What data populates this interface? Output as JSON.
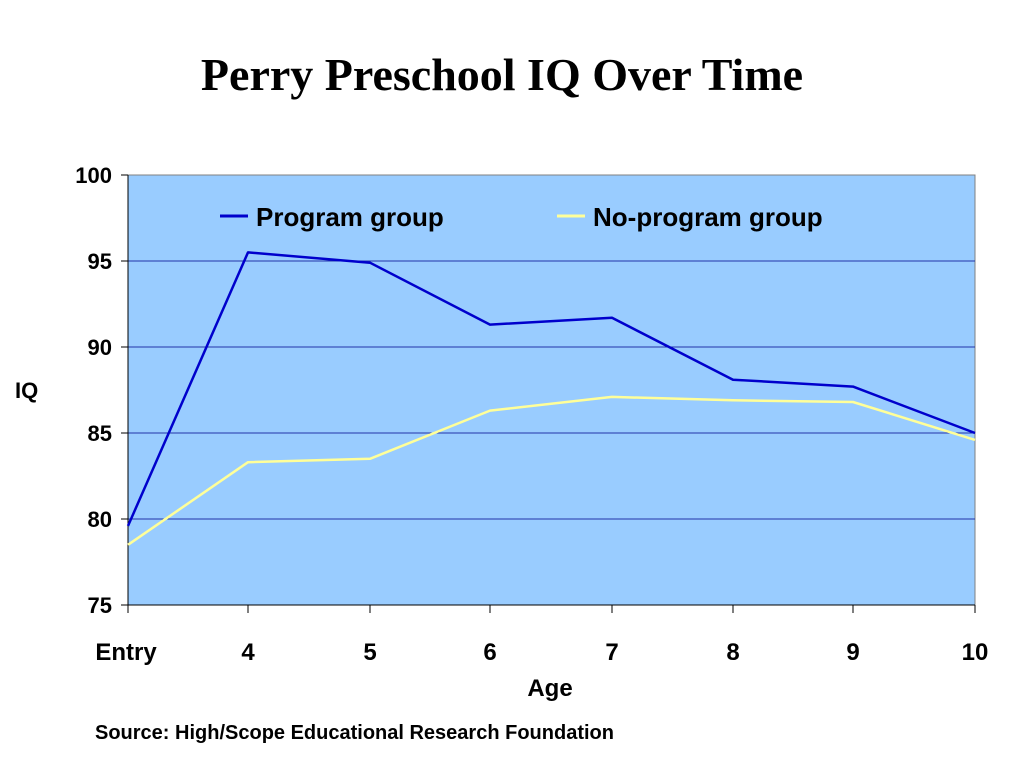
{
  "chart_data": {
    "type": "line",
    "title": "Perry Preschool IQ Over Time",
    "xlabel": "Age",
    "ylabel": "IQ",
    "categories": [
      "Entry",
      "4",
      "5",
      "6",
      "7",
      "8",
      "9",
      "10"
    ],
    "ylim": [
      75,
      100
    ],
    "yticks": [
      75,
      80,
      85,
      90,
      95,
      100
    ],
    "grid": true,
    "legend": "top",
    "series": [
      {
        "name": "Program group",
        "color": "#0000cc",
        "values": [
          79.6,
          95.5,
          94.9,
          91.3,
          91.7,
          88.1,
          87.7,
          85.0
        ]
      },
      {
        "name": "No-program group",
        "color": "#ffff99",
        "values": [
          78.5,
          83.3,
          83.5,
          86.3,
          87.1,
          86.9,
          86.8,
          84.6
        ]
      }
    ],
    "plot_background": "#99ccff",
    "gridline_color": "#2233aa"
  },
  "source": "Source: High/Scope Educational Research Foundation"
}
